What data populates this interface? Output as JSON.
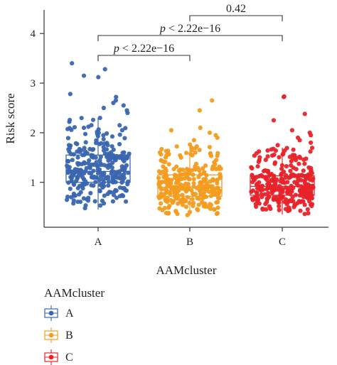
{
  "chart_data": {
    "type": "boxplot",
    "xlabel": "AAMcluster",
    "ylabel": "Risk score",
    "categories": [
      "A",
      "B",
      "C"
    ],
    "ylim": [
      0,
      4.5
    ],
    "yticks": [
      1,
      2,
      3,
      4
    ],
    "grid": false,
    "legend": {
      "title": "AAMcluster",
      "position": "bottom-left",
      "entries": [
        "A",
        "B",
        "C"
      ]
    },
    "series": [
      {
        "category": "A",
        "color": "#3A66B0",
        "box": {
          "whisker_low": 0.45,
          "q1": 1.0,
          "median": 1.22,
          "q3": 1.55,
          "whisker_high": 2.3
        },
        "outliers": [
          2.4,
          2.45,
          2.5,
          2.55,
          2.6,
          2.65,
          2.72,
          2.78,
          3.12,
          3.15,
          3.28,
          3.4
        ]
      },
      {
        "category": "B",
        "color": "#F39C1F",
        "box": {
          "whisker_low": 0.33,
          "q1": 0.72,
          "median": 0.9,
          "q3": 1.15,
          "whisker_high": 1.78
        },
        "outliers": [
          1.85,
          1.9,
          1.95,
          2.0,
          2.05,
          2.1,
          2.45,
          2.65
        ]
      },
      {
        "category": "C",
        "color": "#E8232A",
        "box": {
          "whisker_low": 0.35,
          "q1": 0.74,
          "median": 0.92,
          "q3": 1.13,
          "whisker_high": 1.7
        },
        "outliers": [
          1.75,
          1.8,
          1.85,
          1.9,
          1.95,
          2.0,
          2.05,
          2.25,
          2.38,
          2.72,
          2.73
        ]
      }
    ],
    "comparisons": [
      {
        "groups": [
          "A",
          "B"
        ],
        "label": "p < 2.22e−16"
      },
      {
        "groups": [
          "A",
          "C"
        ],
        "label": "p < 2.22e−16"
      },
      {
        "groups": [
          "B",
          "C"
        ],
        "label": "0.42"
      }
    ]
  }
}
